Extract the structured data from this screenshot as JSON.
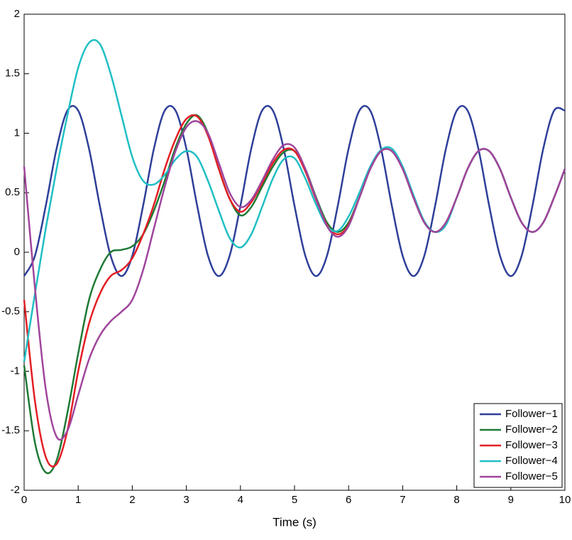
{
  "chart_data": {
    "type": "line",
    "xlabel": "Time (s)",
    "x": [
      0,
      0.2,
      0.4,
      0.6,
      0.8,
      1,
      1.2,
      1.4,
      1.6,
      1.8,
      2,
      2.2,
      2.4,
      2.6,
      2.8,
      3,
      3.2,
      3.4,
      3.6,
      3.8,
      4,
      4.2,
      4.4,
      4.6,
      4.8,
      5,
      5.2,
      5.4,
      5.6,
      5.8,
      6,
      6.2,
      6.4,
      6.6,
      6.8,
      7,
      7.2,
      7.4,
      7.6,
      7.8,
      8,
      8.2,
      8.4,
      8.6,
      8.8,
      9,
      9.2,
      9.4,
      9.6,
      9.8,
      10
    ],
    "series": [
      {
        "name": "Follower−1",
        "color": "#2e3f99",
        "values": [
          -0.2,
          -0.03,
          0.39,
          0.87,
          1.19,
          1.19,
          0.87,
          0.39,
          -0.03,
          -0.2,
          -0.03,
          0.39,
          0.87,
          1.19,
          1.19,
          0.87,
          0.39,
          -0.03,
          -0.2,
          -0.03,
          0.39,
          0.87,
          1.19,
          1.19,
          0.87,
          0.39,
          -0.03,
          -0.2,
          -0.03,
          0.39,
          0.87,
          1.19,
          1.19,
          0.87,
          0.39,
          -0.03,
          -0.2,
          -0.03,
          0.39,
          0.87,
          1.19,
          1.19,
          0.87,
          0.39,
          -0.03,
          -0.2,
          -0.03,
          0.39,
          0.87,
          1.19,
          1.19
        ]
      },
      {
        "name": "Follower−2",
        "color": "#1e7a35",
        "values": [
          -0.95,
          -1.6,
          -1.85,
          -1.75,
          -1.35,
          -0.85,
          -0.4,
          -0.15,
          0.0,
          0.02,
          0.05,
          0.15,
          0.35,
          0.6,
          0.88,
          1.08,
          1.15,
          1.0,
          0.7,
          0.45,
          0.31,
          0.38,
          0.55,
          0.72,
          0.84,
          0.85,
          0.7,
          0.46,
          0.25,
          0.17,
          0.25,
          0.46,
          0.7,
          0.85,
          0.85,
          0.7,
          0.46,
          0.25,
          0.17,
          0.25,
          0.46,
          0.7,
          0.85,
          0.85,
          0.7,
          0.46,
          0.25,
          0.17,
          0.25,
          0.46,
          0.7
        ]
      },
      {
        "name": "Follower−3",
        "color": "#e31e24",
        "values": [
          -0.4,
          -1.25,
          -1.72,
          -1.78,
          -1.5,
          -1.0,
          -0.6,
          -0.35,
          -0.2,
          -0.15,
          -0.05,
          0.15,
          0.4,
          0.7,
          0.95,
          1.12,
          1.14,
          0.98,
          0.7,
          0.45,
          0.34,
          0.42,
          0.58,
          0.75,
          0.86,
          0.85,
          0.68,
          0.44,
          0.23,
          0.15,
          0.23,
          0.46,
          0.7,
          0.85,
          0.85,
          0.7,
          0.46,
          0.25,
          0.17,
          0.25,
          0.46,
          0.7,
          0.85,
          0.85,
          0.7,
          0.46,
          0.25,
          0.17,
          0.25,
          0.46,
          0.7
        ]
      },
      {
        "name": "Follower−4",
        "color": "#1fbfc4",
        "values": [
          -0.92,
          -0.35,
          0.2,
          0.7,
          1.15,
          1.55,
          1.76,
          1.75,
          1.5,
          1.15,
          0.8,
          0.6,
          0.57,
          0.65,
          0.78,
          0.85,
          0.8,
          0.6,
          0.35,
          0.12,
          0.04,
          0.15,
          0.38,
          0.62,
          0.78,
          0.79,
          0.62,
          0.4,
          0.22,
          0.18,
          0.3,
          0.5,
          0.72,
          0.86,
          0.87,
          0.72,
          0.48,
          0.26,
          0.17,
          0.23,
          0.46,
          0.7,
          0.85,
          0.85,
          0.7,
          0.46,
          0.25,
          0.17,
          0.25,
          0.46,
          0.7
        ]
      },
      {
        "name": "Follower−5",
        "color": "#a0459c",
        "values": [
          0.72,
          -0.3,
          -1.15,
          -1.55,
          -1.5,
          -1.2,
          -0.9,
          -0.7,
          -0.58,
          -0.5,
          -0.4,
          -0.15,
          0.2,
          0.55,
          0.85,
          1.05,
          1.1,
          1.0,
          0.75,
          0.5,
          0.38,
          0.44,
          0.6,
          0.78,
          0.9,
          0.88,
          0.7,
          0.45,
          0.22,
          0.13,
          0.22,
          0.46,
          0.7,
          0.85,
          0.85,
          0.7,
          0.46,
          0.25,
          0.17,
          0.25,
          0.46,
          0.7,
          0.85,
          0.85,
          0.7,
          0.46,
          0.25,
          0.17,
          0.25,
          0.46,
          0.7
        ]
      }
    ],
    "xlim": [
      0,
      10
    ],
    "ylim": [
      -2,
      2
    ],
    "xticks": [
      0,
      1,
      2,
      3,
      4,
      5,
      6,
      7,
      8,
      9,
      10
    ],
    "yticks": [
      -2,
      -1.5,
      -1,
      -0.5,
      0,
      0.5,
      1,
      1.5,
      2
    ],
    "legend": "lower right"
  }
}
